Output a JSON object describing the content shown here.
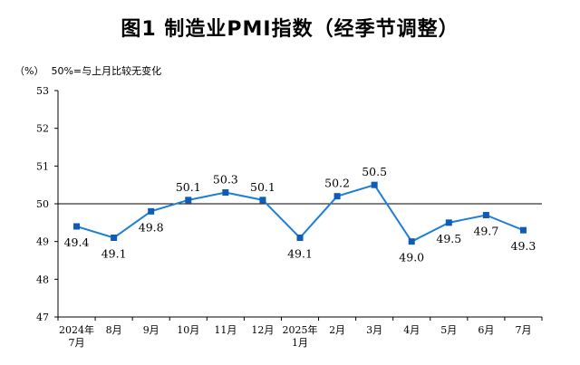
{
  "header": {
    "title": "图1  制造业PMI指数（经季节调整）",
    "unit_label": "（%）",
    "note": "50%=与上月比较无变化"
  },
  "chart_data": {
    "type": "line",
    "title": "图1  制造业PMI指数（经季节调整）",
    "xlabel": "",
    "ylabel": "（%）",
    "ylim": [
      47,
      53
    ],
    "yticks": [
      47,
      48,
      49,
      50,
      51,
      52,
      53
    ],
    "reference_line": 50,
    "categories": [
      [
        "2024年",
        "7月"
      ],
      [
        "8月"
      ],
      [
        "9月"
      ],
      [
        "10月"
      ],
      [
        "11月"
      ],
      [
        "12月"
      ],
      [
        "2025年",
        "1月"
      ],
      [
        "2月"
      ],
      [
        "3月"
      ],
      [
        "4月"
      ],
      [
        "5月"
      ],
      [
        "6月"
      ],
      [
        "7月"
      ]
    ],
    "values": [
      49.4,
      49.1,
      49.8,
      50.1,
      50.3,
      50.1,
      49.1,
      50.2,
      50.5,
      49.0,
      49.5,
      49.7,
      49.3
    ],
    "labels": [
      "49.4",
      "49.1",
      "49.8",
      "50.1",
      "50.3",
      "50.1",
      "49.1",
      "50.2",
      "50.5",
      "49.0",
      "49.5",
      "49.7",
      "49.3"
    ],
    "label_positions": [
      "below",
      "below",
      "below",
      "above",
      "above",
      "above",
      "below",
      "above",
      "above",
      "below",
      "below",
      "below",
      "below"
    ],
    "line_color": "#1f7fd6",
    "marker_color": "#0e5bb8",
    "grid": false
  }
}
